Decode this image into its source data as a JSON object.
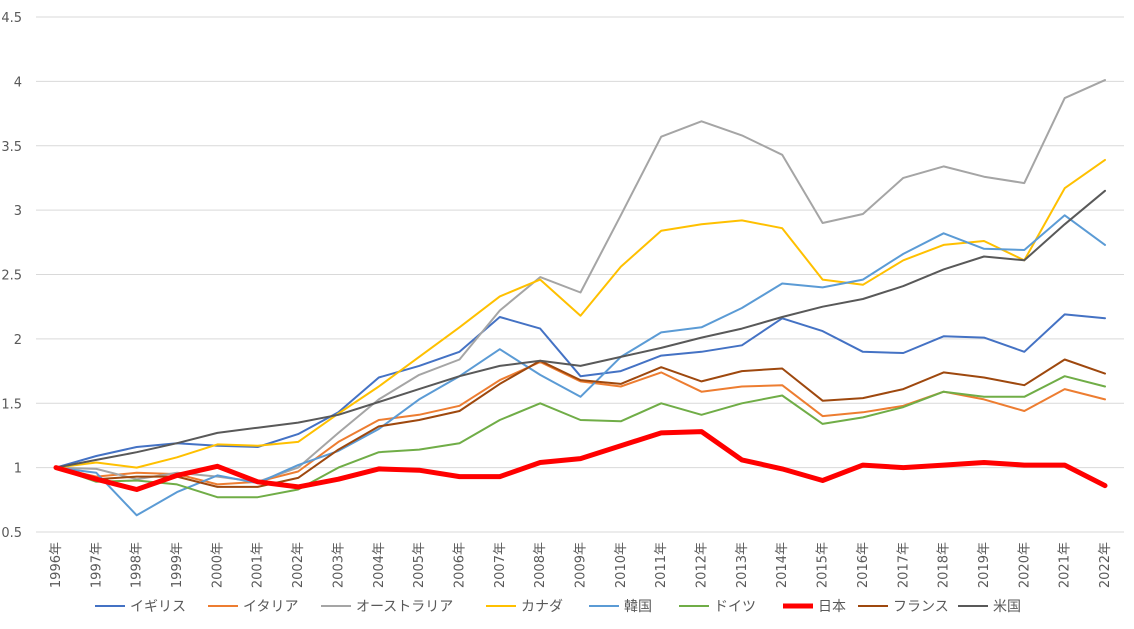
{
  "chart_data": {
    "type": "line",
    "title": "",
    "xlabel": "",
    "ylabel": "",
    "ylim": [
      0.5,
      4.5
    ],
    "y_ticks": [
      "0.5",
      "1",
      "1.5",
      "2",
      "2.5",
      "3",
      "3.5",
      "4",
      "4.5"
    ],
    "grid": "horizontal",
    "legend_position": "bottom",
    "x": [
      "1996年",
      "1997年",
      "1998年",
      "1999年",
      "2000年",
      "2001年",
      "2002年",
      "2003年",
      "2004年",
      "2005年",
      "2006年",
      "2007年",
      "2008年",
      "2009年",
      "2010年",
      "2011年",
      "2012年",
      "2013年",
      "2014年",
      "2015年",
      "2016年",
      "2017年",
      "2018年",
      "2019年",
      "2020年",
      "2021年",
      "2022年"
    ],
    "series": [
      {
        "name": "イギリス",
        "color": "#4472C4",
        "width": 2,
        "values": [
          1.0,
          1.09,
          1.16,
          1.19,
          1.17,
          1.16,
          1.26,
          1.43,
          1.7,
          1.79,
          1.9,
          2.17,
          2.08,
          1.71,
          1.75,
          1.87,
          1.9,
          1.95,
          2.16,
          2.06,
          1.9,
          1.89,
          2.02,
          2.01,
          1.9,
          2.19,
          2.16
        ]
      },
      {
        "name": "イタリア",
        "color": "#ED7D31",
        "width": 2,
        "values": [
          1.0,
          0.93,
          0.96,
          0.95,
          0.87,
          0.89,
          0.97,
          1.2,
          1.37,
          1.41,
          1.48,
          1.68,
          1.82,
          1.67,
          1.63,
          1.74,
          1.59,
          1.63,
          1.64,
          1.4,
          1.43,
          1.48,
          1.59,
          1.53,
          1.44,
          1.61,
          1.53
        ]
      },
      {
        "name": "オーストラリア",
        "color": "#A5A5A5",
        "width": 2,
        "values": [
          1.0,
          0.99,
          0.91,
          0.96,
          0.93,
          0.89,
          1.0,
          1.27,
          1.53,
          1.72,
          1.84,
          2.22,
          2.48,
          2.36,
          2.96,
          3.57,
          3.69,
          3.58,
          3.43,
          2.9,
          2.97,
          3.25,
          3.34,
          3.26,
          3.21,
          3.87,
          4.01
        ]
      },
      {
        "name": "カナダ",
        "color": "#FFC000",
        "width": 2,
        "values": [
          1.0,
          1.04,
          1.0,
          1.08,
          1.18,
          1.17,
          1.2,
          1.42,
          1.63,
          1.86,
          2.09,
          2.33,
          2.46,
          2.18,
          2.56,
          2.84,
          2.89,
          2.92,
          2.86,
          2.46,
          2.42,
          2.61,
          2.73,
          2.76,
          2.61,
          3.17,
          3.39
        ]
      },
      {
        "name": "韓国",
        "color": "#5B9BD5",
        "width": 2,
        "values": [
          1.0,
          0.96,
          0.63,
          0.81,
          0.94,
          0.88,
          1.02,
          1.13,
          1.3,
          1.53,
          1.71,
          1.92,
          1.72,
          1.55,
          1.86,
          2.05,
          2.09,
          2.24,
          2.43,
          2.4,
          2.46,
          2.66,
          2.82,
          2.7,
          2.69,
          2.96,
          2.73
        ]
      },
      {
        "name": "ドイツ",
        "color": "#70AD47",
        "width": 2,
        "values": [
          1.0,
          0.89,
          0.9,
          0.87,
          0.77,
          0.77,
          0.83,
          1.0,
          1.12,
          1.14,
          1.19,
          1.37,
          1.5,
          1.37,
          1.36,
          1.5,
          1.41,
          1.5,
          1.56,
          1.34,
          1.39,
          1.47,
          1.59,
          1.55,
          1.55,
          1.71,
          1.63
        ]
      },
      {
        "name": "日本",
        "color": "#FF0000",
        "width": 5,
        "values": [
          1.0,
          0.91,
          0.83,
          0.94,
          1.01,
          0.89,
          0.85,
          0.91,
          0.99,
          0.98,
          0.93,
          0.93,
          1.04,
          1.07,
          1.17,
          1.27,
          1.28,
          1.06,
          0.99,
          0.9,
          1.02,
          1.0,
          1.02,
          1.04,
          1.02,
          1.02,
          0.86
        ]
      },
      {
        "name": "フランス",
        "color": "#9E480E",
        "width": 2,
        "values": [
          1.0,
          0.91,
          0.93,
          0.93,
          0.85,
          0.85,
          0.92,
          1.14,
          1.32,
          1.37,
          1.44,
          1.65,
          1.83,
          1.68,
          1.65,
          1.78,
          1.67,
          1.75,
          1.77,
          1.52,
          1.54,
          1.61,
          1.74,
          1.7,
          1.64,
          1.84,
          1.73
        ]
      },
      {
        "name": "米国",
        "color": "#595959",
        "width": 2,
        "values": [
          1.0,
          1.06,
          1.12,
          1.19,
          1.27,
          1.31,
          1.35,
          1.41,
          1.51,
          1.61,
          1.71,
          1.79,
          1.83,
          1.79,
          1.86,
          1.93,
          2.01,
          2.08,
          2.17,
          2.25,
          2.31,
          2.41,
          2.54,
          2.64,
          2.61,
          2.89,
          3.15
        ]
      }
    ]
  }
}
